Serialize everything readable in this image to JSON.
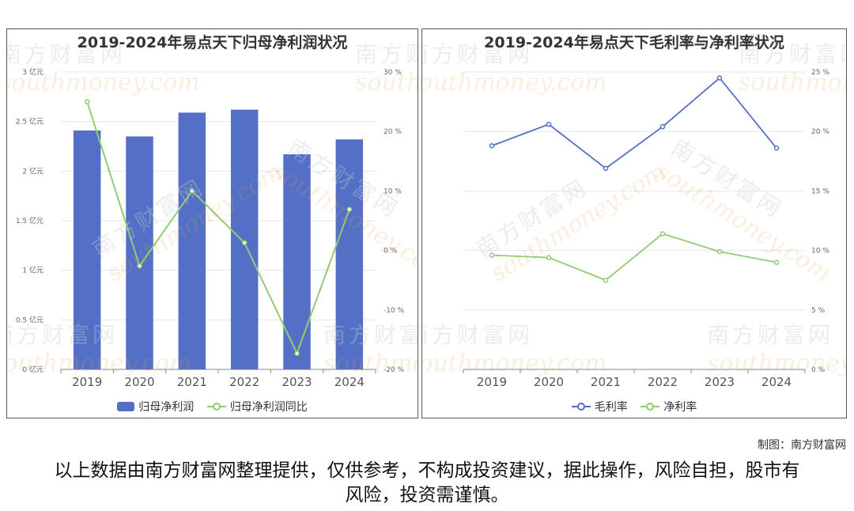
{
  "left_chart": {
    "title": "2019-2024年易点天下归母净利润状况",
    "legend": [
      "归母净利润",
      "归母净利润同比"
    ]
  },
  "right_chart": {
    "title": "2019-2024年易点天下毛利率与净利率状况",
    "legend": [
      "毛利率",
      "净利率"
    ]
  },
  "watermark": {
    "cn": "南方财富网",
    "en": "southmoney.com"
  },
  "footer": {
    "credit": "制图：南方财富网",
    "disclaimer": "以上数据由南方财富网整理提供，仅供参考，不构成投资建议，据此操作，风险自担，股市有风险，投资需谨慎。"
  },
  "colors": {
    "bar": "#5470c6",
    "line_green": "#91cc75",
    "line_blue": "#5470c6",
    "grid": "#e6e6e6"
  },
  "chart_data": [
    {
      "type": "bar",
      "title": "2019-2024年易点天下归母净利润状况",
      "categories": [
        "2019",
        "2020",
        "2021",
        "2022",
        "2023",
        "2024"
      ],
      "series": [
        {
          "name": "归母净利润",
          "type": "bar",
          "axis": "left",
          "values": [
            2.41,
            2.35,
            2.59,
            2.62,
            2.17,
            2.32
          ]
        },
        {
          "name": "归母净利润同比",
          "type": "line",
          "axis": "right",
          "values": [
            25.0,
            -2.6,
            10.0,
            1.3,
            -17.3,
            6.9
          ]
        }
      ],
      "y_left": {
        "min": 0,
        "max": 3,
        "ticks": [
          0,
          0.5,
          1,
          1.5,
          2,
          2.5,
          3
        ],
        "labels": [
          "0 亿元",
          "0.5 亿元",
          "1 亿元",
          "1.5 亿元",
          "2 亿元",
          "2.5 亿元",
          "3 亿元"
        ]
      },
      "y_right": {
        "min": -20,
        "max": 30,
        "ticks": [
          -20,
          -10,
          0,
          10,
          20,
          30
        ],
        "labels": [
          "-20 %",
          "-10 %",
          "0 %",
          "10 %",
          "20 %",
          "30 %"
        ]
      },
      "grid": true,
      "legend_position": "bottom"
    },
    {
      "type": "line",
      "title": "2019-2024年易点天下毛利率与净利率状况",
      "categories": [
        "2019",
        "2020",
        "2021",
        "2022",
        "2023",
        "2024"
      ],
      "series": [
        {
          "name": "毛利率",
          "values": [
            18.8,
            20.6,
            16.9,
            20.4,
            24.5,
            18.6
          ]
        },
        {
          "name": "净利率",
          "values": [
            9.6,
            9.4,
            7.5,
            11.4,
            9.9,
            9.0
          ]
        }
      ],
      "y_right": {
        "min": 0,
        "max": 25,
        "ticks": [
          0,
          5,
          10,
          15,
          20,
          25
        ],
        "labels": [
          "0 %",
          "5 %",
          "10 %",
          "15 %",
          "20 %",
          "25 %"
        ]
      },
      "grid": true,
      "legend_position": "bottom"
    }
  ]
}
